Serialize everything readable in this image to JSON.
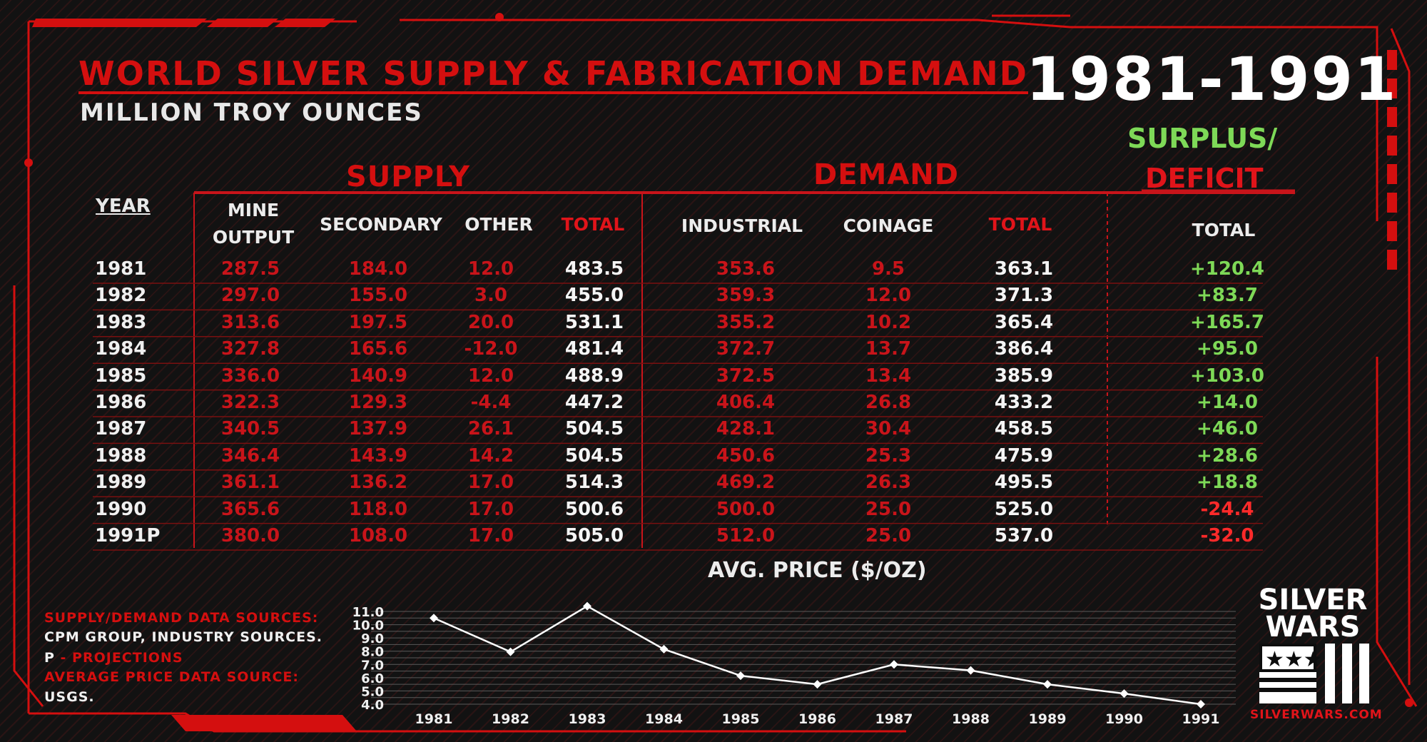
{
  "header": {
    "title": "WORLD SILVER SUPPLY & FABRICATION DEMAND",
    "subtitle": "MILLION TROY OUNCES",
    "years": "1981-1991",
    "surplus_label": "SURPLUS/",
    "deficit_label": "DEFICIT"
  },
  "sections": {
    "supply": "SUPPLY",
    "demand": "DEMAND"
  },
  "columns": {
    "year": "YEAR",
    "mine_line1": "MINE",
    "mine_line2": "OUTPUT",
    "secondary": "SECONDARY",
    "other": "OTHER",
    "supply_total": "TOTAL",
    "industrial": "INDUSTRIAL",
    "coinage": "COINAGE",
    "demand_total": "TOTAL",
    "balance_total": "TOTAL"
  },
  "rows": [
    {
      "year": "1981",
      "mine": "287.5",
      "secondary": "184.0",
      "other": "12.0",
      "supply_total": "483.5",
      "industrial": "353.6",
      "coinage": "9.5",
      "demand_total": "363.1",
      "balance": "+120.4"
    },
    {
      "year": "1982",
      "mine": "297.0",
      "secondary": "155.0",
      "other": "3.0",
      "supply_total": "455.0",
      "industrial": "359.3",
      "coinage": "12.0",
      "demand_total": "371.3",
      "balance": "+83.7"
    },
    {
      "year": "1983",
      "mine": "313.6",
      "secondary": "197.5",
      "other": "20.0",
      "supply_total": "531.1",
      "industrial": "355.2",
      "coinage": "10.2",
      "demand_total": "365.4",
      "balance": "+165.7"
    },
    {
      "year": "1984",
      "mine": "327.8",
      "secondary": "165.6",
      "other": "-12.0",
      "supply_total": "481.4",
      "industrial": "372.7",
      "coinage": "13.7",
      "demand_total": "386.4",
      "balance": "+95.0"
    },
    {
      "year": "1985",
      "mine": "336.0",
      "secondary": "140.9",
      "other": "12.0",
      "supply_total": "488.9",
      "industrial": "372.5",
      "coinage": "13.4",
      "demand_total": "385.9",
      "balance": "+103.0"
    },
    {
      "year": "1986",
      "mine": "322.3",
      "secondary": "129.3",
      "other": "-4.4",
      "supply_total": "447.2",
      "industrial": "406.4",
      "coinage": "26.8",
      "demand_total": "433.2",
      "balance": "+14.0"
    },
    {
      "year": "1987",
      "mine": "340.5",
      "secondary": "137.9",
      "other": "26.1",
      "supply_total": "504.5",
      "industrial": "428.1",
      "coinage": "30.4",
      "demand_total": "458.5",
      "balance": "+46.0"
    },
    {
      "year": "1988",
      "mine": "346.4",
      "secondary": "143.9",
      "other": "14.2",
      "supply_total": "504.5",
      "industrial": "450.6",
      "coinage": "25.3",
      "demand_total": "475.9",
      "balance": "+28.6"
    },
    {
      "year": "1989",
      "mine": "361.1",
      "secondary": "136.2",
      "other": "17.0",
      "supply_total": "514.3",
      "industrial": "469.2",
      "coinage": "26.3",
      "demand_total": "495.5",
      "balance": "+18.8"
    },
    {
      "year": "1990",
      "mine": "365.6",
      "secondary": "118.0",
      "other": "17.0",
      "supply_total": "500.6",
      "industrial": "500.0",
      "coinage": "25.0",
      "demand_total": "525.0",
      "balance": "-24.4"
    },
    {
      "year": "1991P",
      "mine": "380.0",
      "secondary": "108.0",
      "other": "17.0",
      "supply_total": "505.0",
      "industrial": "512.0",
      "coinage": "25.0",
      "demand_total": "537.0",
      "balance": "-32.0"
    }
  ],
  "sources": {
    "line1": "SUPPLY/DEMAND DATA SOURCES:",
    "line2": "CPM GROUP, INDUSTRY SOURCES.",
    "line3_p": "P",
    "line3_rest": " - PROJECTIONS",
    "line4": "AVERAGE PRICE DATA SOURCE:",
    "line5": "USGS."
  },
  "logo": {
    "line1": "SILVER",
    "line2": "WARS",
    "url": "SILVERWARS.COM"
  },
  "colors": {
    "accent_red": "#d40f0f",
    "surplus_green": "#7ed957",
    "text_white": "#f5f5f5",
    "background": "#0d0d0d"
  },
  "chart_data": {
    "type": "line",
    "title": "AVG. PRICE ($/OZ)",
    "x": [
      "1981",
      "1982",
      "1983",
      "1984",
      "1985",
      "1986",
      "1987",
      "1988",
      "1989",
      "1990",
      "1991"
    ],
    "values": [
      10.5,
      7.95,
      11.4,
      8.15,
      6.15,
      5.5,
      7.0,
      6.55,
      5.5,
      4.8,
      4.0
    ],
    "y_ticks": [
      "4.0",
      "5.0",
      "6.0",
      "7.0",
      "8.0",
      "9.0",
      "10.0",
      "11.0"
    ],
    "ylim": [
      4.0,
      11.0
    ],
    "grid": true
  }
}
